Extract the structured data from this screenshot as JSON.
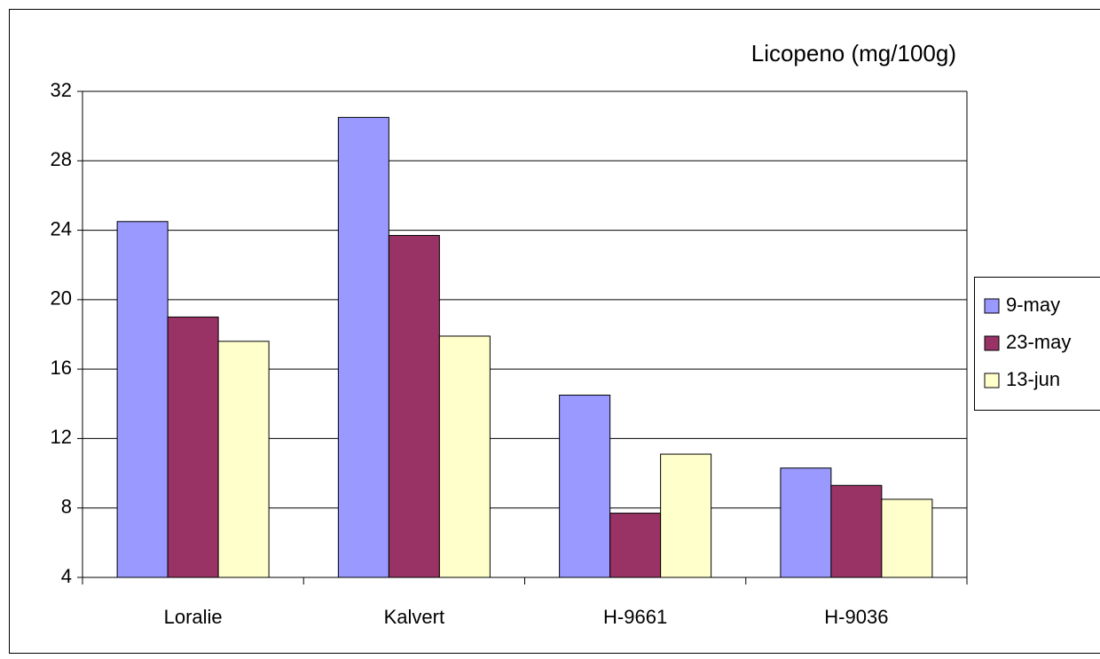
{
  "chart_data": {
    "type": "bar",
    "title": "Licopeno (mg/100g)",
    "categories": [
      "Loralie",
      "Kalvert",
      "H-9661",
      "H-9036"
    ],
    "series": [
      {
        "name": "9-may",
        "color": "#9999ff",
        "values": [
          24.5,
          30.5,
          14.5,
          10.3
        ]
      },
      {
        "name": "23-may",
        "color": "#993366",
        "values": [
          19.0,
          23.7,
          7.7,
          9.3
        ]
      },
      {
        "name": "13-jun",
        "color": "#ffffcc",
        "values": [
          17.6,
          17.9,
          11.1,
          8.5
        ]
      }
    ],
    "ylim": [
      4,
      32
    ],
    "yticks": [
      4,
      8,
      12,
      16,
      20,
      24,
      28,
      32
    ],
    "grid": true,
    "legend": "right"
  }
}
